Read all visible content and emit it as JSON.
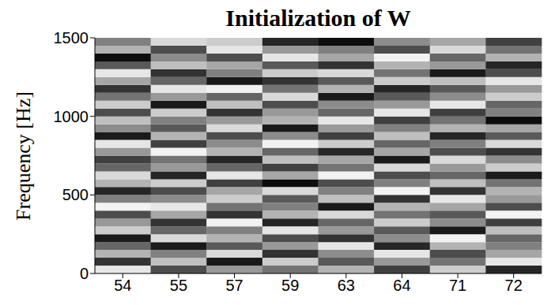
{
  "chart_data": {
    "type": "heatmap",
    "title": "Initialization of W",
    "y_label": "Frequency [Hz]",
    "categories": [
      54,
      55,
      57,
      59,
      63,
      64,
      71,
      72
    ],
    "ylim": [
      0,
      1500
    ],
    "yticks": [
      0,
      500,
      1000,
      1500
    ],
    "y_bins": [
      0,
      50,
      100,
      150,
      200,
      250,
      300,
      350,
      400,
      450,
      500,
      550,
      600,
      650,
      700,
      750,
      800,
      850,
      900,
      950,
      1000,
      1050,
      1100,
      1150,
      1200,
      1250,
      1300,
      1350,
      1400,
      1450,
      1500
    ],
    "cells": [
      [
        0.9,
        0.2,
        0.7,
        0.4,
        0.1,
        0.8,
        0.6,
        0.3,
        0.95,
        0.5,
        0.15,
        0.7,
        0.85,
        0.4,
        0.25,
        0.6,
        0.9,
        0.1,
        0.55,
        0.75,
        0.3,
        0.8,
        0.45,
        0.2,
        0.65,
        0.9,
        0.35,
        0.05,
        0.7,
        0.5
      ],
      [
        0.3,
        0.75,
        0.5,
        0.1,
        0.85,
        0.4,
        0.2,
        0.65,
        0.9,
        0.55,
        0.3,
        0.8,
        0.15,
        0.6,
        0.45,
        0.95,
        0.25,
        0.7,
        0.35,
        0.5,
        0.8,
        0.1,
        0.6,
        0.9,
        0.4,
        0.2,
        0.75,
        0.55,
        0.3,
        0.85
      ],
      [
        0.6,
        0.1,
        0.85,
        0.35,
        0.7,
        0.5,
        0.95,
        0.2,
        0.45,
        0.8,
        0.65,
        0.25,
        0.9,
        0.4,
        0.15,
        0.7,
        0.55,
        0.3,
        0.85,
        0.6,
        0.2,
        0.75,
        0.4,
        0.95,
        0.1,
        0.5,
        0.65,
        0.3,
        0.9,
        0.8
      ],
      [
        0.45,
        0.8,
        0.2,
        0.6,
        0.3,
        0.9,
        0.15,
        0.7,
        0.5,
        0.35,
        0.85,
        0.05,
        0.65,
        0.25,
        0.75,
        0.4,
        0.95,
        0.55,
        0.1,
        0.7,
        0.6,
        0.3,
        0.85,
        0.45,
        0.2,
        0.8,
        0.35,
        0.9,
        0.6,
        0.15
      ],
      [
        0.7,
        0.35,
        0.55,
        0.9,
        0.2,
        0.6,
        0.4,
        0.85,
        0.1,
        0.75,
        0.5,
        0.3,
        0.95,
        0.45,
        0.65,
        0.15,
        0.8,
        0.25,
        0.6,
        0.9,
        0.4,
        0.55,
        0.1,
        0.7,
        0.35,
        0.85,
        0.2,
        0.65,
        0.5,
        0.05
      ],
      [
        0.25,
        0.6,
        0.9,
        0.15,
        0.55,
        0.35,
        0.8,
        0.45,
        0.7,
        0.2,
        0.95,
        0.5,
        0.3,
        0.85,
        0.1,
        0.65,
        0.4,
        0.75,
        0.5,
        0.25,
        0.9,
        0.6,
        0.35,
        0.15,
        0.8,
        0.45,
        0.7,
        0.95,
        0.3,
        0.55
      ],
      [
        0.8,
        0.45,
        0.3,
        0.7,
        0.95,
        0.1,
        0.55,
        0.35,
        0.65,
        0.9,
        0.2,
        0.75,
        0.4,
        0.6,
        0.85,
        0.3,
        0.5,
        0.15,
        0.7,
        0.45,
        0.25,
        0.9,
        0.55,
        0.35,
        0.75,
        0.1,
        0.6,
        0.4,
        0.85,
        0.65
      ],
      [
        0.15,
        0.9,
        0.65,
        0.5,
        0.4,
        0.75,
        0.25,
        0.95,
        0.3,
        0.6,
        0.7,
        0.45,
        0.1,
        0.8,
        0.55,
        0.2,
        0.85,
        0.35,
        0.65,
        0.05,
        0.5,
        0.4,
        0.8,
        0.6,
        0.9,
        0.3,
        0.15,
        0.7,
        0.45,
        0.25
      ]
    ]
  }
}
